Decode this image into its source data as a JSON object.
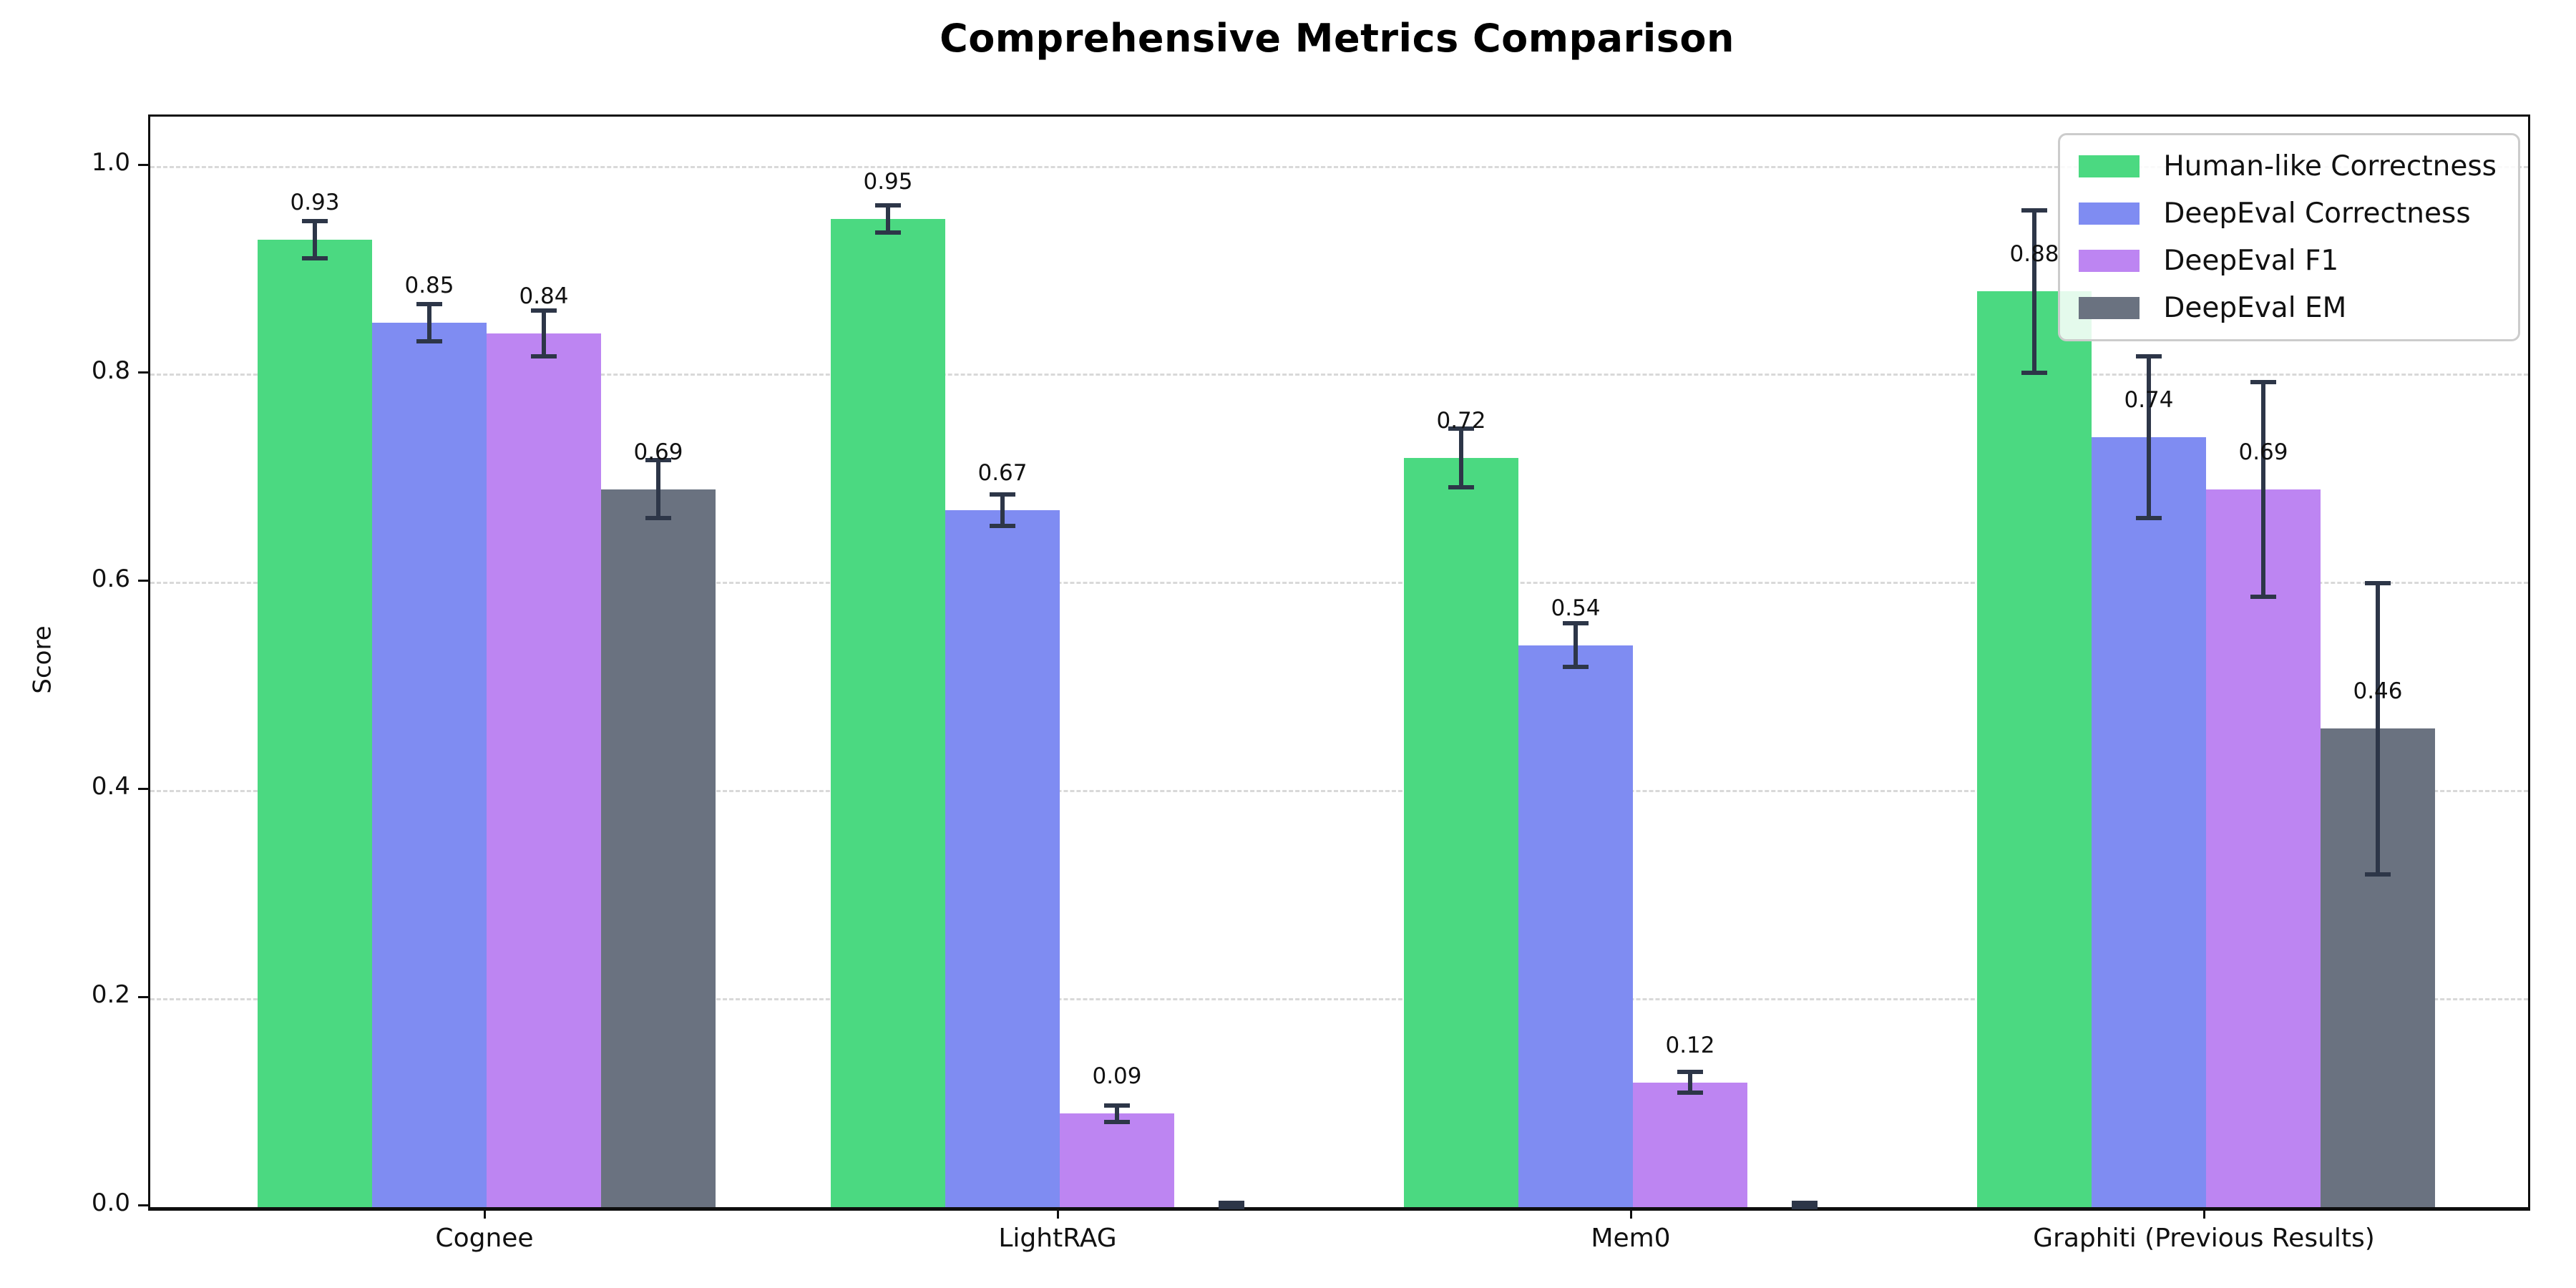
{
  "title": "Comprehensive Metrics Comparison",
  "chart_data": {
    "type": "bar",
    "title": "Comprehensive Metrics Comparison",
    "xlabel": "",
    "ylabel": "Score",
    "ylim": [
      0.0,
      1.05
    ],
    "yticks": [
      "0.0",
      "0.2",
      "0.4",
      "0.6",
      "0.8",
      "1.0"
    ],
    "grid": "horizontal dashed gridlines on",
    "legend_position": "upper right",
    "categories": [
      "Cognee",
      "LightRAG",
      "Mem0",
      "Graphiti (Previous Results)"
    ],
    "series": [
      {
        "name": "Human-like Correctness",
        "color": "#4bd981",
        "values": [
          0.93,
          0.95,
          0.72,
          0.88
        ],
        "errors": [
          0.018,
          0.013,
          0.028,
          0.078
        ],
        "labels": [
          "0.93",
          "0.95",
          "0.72",
          "0.88"
        ]
      },
      {
        "name": "DeepEval Correctness",
        "color": "#7f8cf2",
        "values": [
          0.85,
          0.67,
          0.54,
          0.74
        ],
        "errors": [
          0.018,
          0.015,
          0.021,
          0.078
        ],
        "labels": [
          "0.85",
          "0.67",
          "0.54",
          "0.74"
        ]
      },
      {
        "name": "DeepEval F1",
        "color": "#bd85f2",
        "values": [
          0.84,
          0.09,
          0.12,
          0.69
        ],
        "errors": [
          0.022,
          0.008,
          0.01,
          0.103
        ],
        "labels": [
          "0.84",
          "0.09",
          "0.12",
          "0.69"
        ]
      },
      {
        "name": "DeepEval EM",
        "color": "#6a7280",
        "values": [
          0.69,
          0.0,
          0.0,
          0.46
        ],
        "errors": [
          0.028,
          0.004,
          0.004,
          0.14
        ],
        "labels": [
          "0.69",
          "",
          "",
          "0.46"
        ]
      }
    ],
    "error_bar_color": "#2d3648",
    "axis_color": "#0f0f0f",
    "grid_color": "#d9d9d9",
    "background_color": "#ffffff"
  }
}
